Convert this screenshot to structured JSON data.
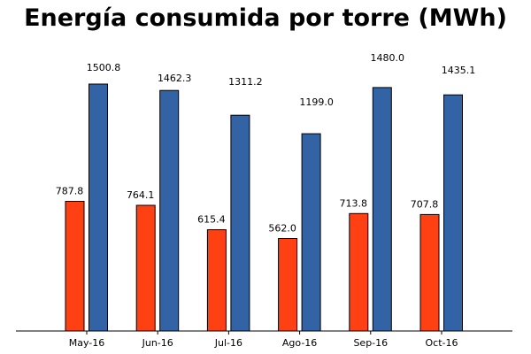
{
  "chart_data": {
    "type": "bar",
    "title": "Energía consumida por torre (MWh)",
    "xlabel": "",
    "ylabel": "",
    "categories": [
      "May-16",
      "Jun-16",
      "Jul-16",
      "Ago-16",
      "Sep-16",
      "Oct-16"
    ],
    "series": [
      {
        "values": [
          787.8,
          764.1,
          615.4,
          562.0,
          713.8,
          707.8
        ],
        "labels": [
          "787.8",
          "764.1",
          "615.4",
          "562.0",
          "713.8",
          "707.8"
        ],
        "color": "#ff4013"
      },
      {
        "values": [
          1500.8,
          1462.3,
          1311.2,
          1199.0,
          1480.0,
          1435.1
        ],
        "labels": [
          "1500.8",
          "1462.3",
          "1311.2",
          "1199.0",
          "1480.0",
          "1435.1"
        ],
        "color": "#3163a5"
      }
    ],
    "ylim": [
      0,
      1500.8
    ],
    "grid": false,
    "legend": "none",
    "y_axis_visible": false
  }
}
